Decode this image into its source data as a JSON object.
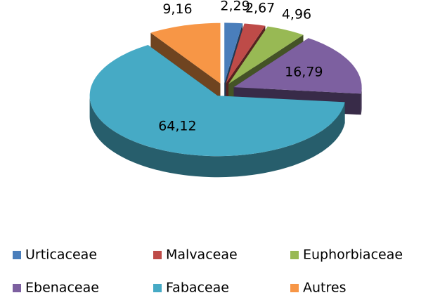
{
  "chart_data": {
    "type": "pie3d",
    "categories": [
      "Urticaceae",
      "Malvaceae",
      "Euphorbiaceae",
      "Ebenaceae",
      "Fabaceae",
      "Autres"
    ],
    "values": [
      2.29,
      2.67,
      4.96,
      16.79,
      64.12,
      9.16
    ],
    "value_labels": [
      "2,29",
      "2,67",
      "4,96",
      "16,79",
      "64,12",
      "9,16"
    ],
    "colors": [
      "#4a7ebb",
      "#be4b48",
      "#98b954",
      "#7d60a0",
      "#46aac5",
      "#f79646"
    ],
    "legend": "bottom"
  }
}
